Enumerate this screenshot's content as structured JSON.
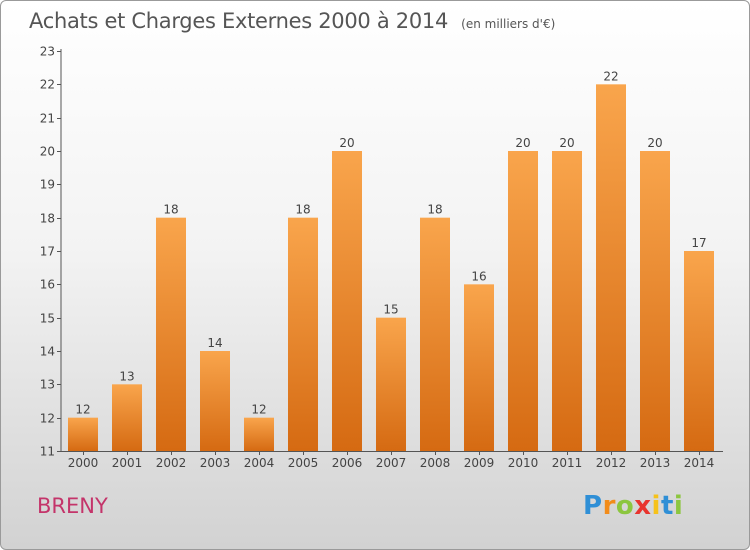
{
  "header": {
    "title": "Achats et Charges Externes 2000 à 2014",
    "subtitle": "(en milliers d'€)"
  },
  "footer": {
    "city": "BRENY",
    "logo_letters": [
      {
        "ch": "P",
        "color": "#2f8fd6"
      },
      {
        "ch": "r",
        "color": "#f28c1a"
      },
      {
        "ch": "o",
        "color": "#8cc63f"
      },
      {
        "ch": "x",
        "color": "#e8342e"
      },
      {
        "ch": "i",
        "color": "#f6c21a"
      },
      {
        "ch": "t",
        "color": "#2f8fd6"
      },
      {
        "ch": "i",
        "color": "#8cc63f"
      }
    ]
  },
  "chart_data": {
    "type": "bar",
    "title": "Achats et Charges Externes 2000 à 2014",
    "subtitle": "(en milliers d'€)",
    "categories": [
      "2000",
      "2001",
      "2002",
      "2003",
      "2004",
      "2005",
      "2006",
      "2007",
      "2008",
      "2009",
      "2010",
      "2011",
      "2012",
      "2013",
      "2014"
    ],
    "values": [
      12,
      13,
      18,
      14,
      12,
      18,
      20,
      15,
      18,
      16,
      20,
      20,
      22,
      20,
      17
    ],
    "ylim": [
      11,
      23
    ],
    "yticks": [
      11,
      12,
      13,
      14,
      15,
      16,
      17,
      18,
      19,
      20,
      21,
      22,
      23
    ],
    "grid": false,
    "bar_color_top": "#f9a54c",
    "bar_color_bottom": "#d56a12"
  }
}
